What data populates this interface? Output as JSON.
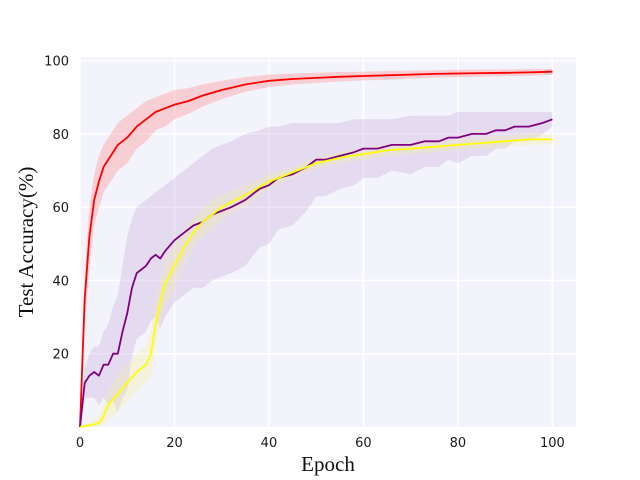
{
  "chart_data": {
    "type": "line",
    "title": "",
    "xlabel": "Epoch",
    "ylabel": "Test Accuracy(%)",
    "xlim": [
      0,
      105
    ],
    "ylim": [
      0,
      101
    ],
    "xticks": [
      0,
      20,
      40,
      60,
      80,
      100
    ],
    "yticks": [
      20,
      40,
      60,
      80,
      100
    ],
    "grid": true,
    "legend": "none",
    "colors": {
      "background": "#f3f3fb",
      "grid": "#ffffff"
    },
    "series": [
      {
        "color": "#ff0000",
        "band_color": "#ff8080",
        "x": [
          0,
          1,
          2,
          3,
          4,
          5,
          6,
          8,
          10,
          12,
          14,
          16,
          18,
          20,
          23,
          26,
          30,
          35,
          40,
          45,
          50,
          55,
          60,
          65,
          70,
          75,
          80,
          85,
          90,
          95,
          100
        ],
        "values": [
          0,
          35,
          52,
          62,
          67,
          71,
          73,
          77,
          79,
          82,
          84,
          86,
          87,
          88,
          89,
          90.5,
          92,
          93.5,
          94.5,
          95,
          95.3,
          95.6,
          95.8,
          96,
          96.2,
          96.4,
          96.5,
          96.6,
          96.7,
          96.8,
          97
        ],
        "band_upper": [
          0,
          42,
          60,
          69,
          74,
          77,
          79,
          83,
          85,
          87,
          89,
          90,
          91,
          92,
          92.5,
          93.5,
          94.5,
          95.5,
          96.2,
          96.5,
          96.7,
          96.9,
          97,
          97.2,
          97.3,
          97.4,
          97.5,
          97.6,
          97.6,
          97.7,
          97.8
        ],
        "band_lower": [
          0,
          28,
          44,
          55,
          60,
          64,
          66,
          70,
          72,
          76,
          78,
          81,
          82,
          84,
          85.5,
          87.5,
          89.5,
          91.5,
          92.8,
          93.5,
          93.9,
          94.3,
          94.6,
          94.8,
          95.1,
          95.4,
          95.5,
          95.6,
          95.8,
          95.9,
          96.1
        ]
      },
      {
        "color": "#800080",
        "band_color": "#c8a8dc",
        "x": [
          0,
          1,
          2,
          3,
          4,
          5,
          6,
          7,
          8,
          9,
          10,
          11,
          12,
          13,
          14,
          15,
          16,
          17,
          18,
          20,
          22,
          24,
          26,
          28,
          30,
          32,
          35,
          38,
          40,
          42,
          45,
          48,
          50,
          52,
          55,
          58,
          60,
          63,
          66,
          70,
          73,
          76,
          78,
          80,
          83,
          86,
          88,
          90,
          92,
          95,
          98,
          100
        ],
        "values": [
          0,
          12,
          14,
          15,
          14,
          17,
          17,
          20,
          20,
          26,
          31,
          38,
          42,
          43,
          44,
          46,
          47,
          46,
          48,
          51,
          53,
          55,
          56,
          58,
          59,
          60,
          62,
          65,
          66,
          68,
          69,
          71,
          73,
          73,
          74,
          75,
          76,
          76,
          77,
          77,
          78,
          78,
          79,
          79,
          80,
          80,
          81,
          81,
          82,
          82,
          83,
          84
        ],
        "band_upper": [
          0,
          16,
          20,
          22,
          22,
          26,
          28,
          33,
          36,
          44,
          52,
          57,
          60,
          61,
          62,
          63,
          64,
          65,
          66,
          68,
          70,
          72,
          74,
          76,
          77,
          78,
          80,
          81,
          82,
          82,
          83,
          83,
          83,
          83,
          83,
          84,
          84,
          84,
          84,
          85,
          85,
          85,
          85,
          86,
          86,
          86,
          86,
          86,
          86,
          86,
          86,
          86
        ],
        "band_lower": [
          0,
          8,
          8,
          8,
          6,
          8,
          6,
          7,
          4,
          8,
          10,
          19,
          24,
          25,
          26,
          29,
          30,
          27,
          30,
          34,
          36,
          38,
          38,
          40,
          41,
          42,
          44,
          49,
          50,
          54,
          55,
          59,
          63,
          63,
          65,
          66,
          68,
          68,
          70,
          69,
          71,
          71,
          73,
          72,
          74,
          74,
          76,
          76,
          78,
          78,
          80,
          82
        ]
      },
      {
        "color": "#ffff00",
        "band_color": "#f6f0a0",
        "x": [
          0,
          2,
          4,
          5,
          6,
          8,
          10,
          12,
          14,
          15,
          16,
          17,
          18,
          20,
          22,
          24,
          26,
          28,
          30,
          33,
          36,
          40,
          45,
          50,
          55,
          60,
          65,
          70,
          75,
          80,
          85,
          90,
          95,
          100
        ],
        "values": [
          0,
          0.5,
          1,
          3,
          6,
          9,
          12,
          15,
          17,
          20,
          28,
          34,
          39,
          44,
          49,
          53,
          56,
          58,
          60,
          62,
          64,
          67,
          69.5,
          72,
          73.5,
          74.5,
          75.5,
          76,
          76.5,
          77,
          77.5,
          78,
          78.5,
          78.5
        ],
        "band_upper": [
          0,
          1.5,
          3,
          6,
          10,
          14,
          17,
          20,
          22,
          26,
          34,
          40,
          45,
          50,
          54,
          57,
          60,
          62,
          63.5,
          65,
          66.5,
          69,
          71,
          73.5,
          75,
          76,
          77,
          77.5,
          78,
          78.5,
          79,
          79.5,
          80,
          80
        ],
        "band_lower": [
          0,
          0,
          0,
          0.5,
          2,
          4,
          7,
          10,
          12,
          14,
          22,
          28,
          33,
          38,
          44,
          49,
          52,
          54,
          56.5,
          59,
          61.5,
          65,
          68,
          70.5,
          72,
          73,
          74,
          74.5,
          75,
          75.5,
          76,
          76.5,
          77,
          77
        ]
      }
    ]
  }
}
